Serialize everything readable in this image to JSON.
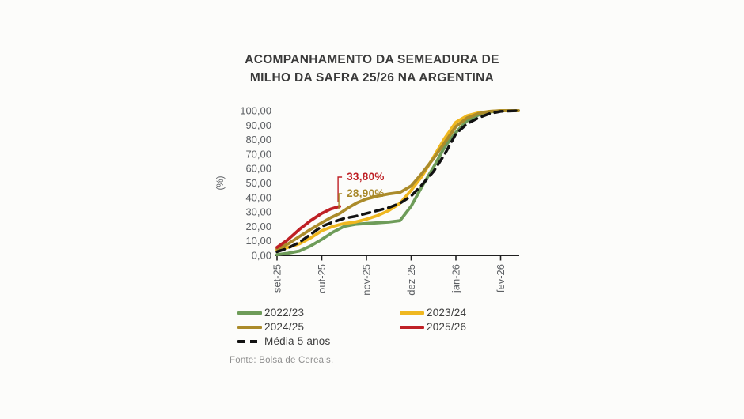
{
  "title": {
    "line1": "ACOMPANHAMENTO DA SEMEADURA DE",
    "line2": "MILHO DA SAFRA 25/26 NA ARGENTINA"
  },
  "source": "Fonte: Bolsa de Cereais.",
  "colors": {
    "season_2022_23": "#6e9c59",
    "season_2023_24": "#efb71f",
    "season_2024_25": "#ab8b2a",
    "season_2025_26": "#bf2025",
    "media_5_anos": "#121212",
    "axis": "#1f1f1f",
    "tick_text": "#5c5f63"
  },
  "chart_data": {
    "type": "line",
    "title": "ACOMPANHAMENTO DA SEMEADURA DE MILHO DA SAFRA 25/26 NA ARGENTINA",
    "xlabel": "",
    "ylabel": "(%)",
    "ylim": [
      0,
      100
    ],
    "y_tick_step": 10,
    "y_tick_labels": [
      "0,00",
      "10,00",
      "20,00",
      "30,00",
      "40,00",
      "50,00",
      "60,00",
      "70,00",
      "80,00",
      "90,00",
      "100,00"
    ],
    "x_tick_labels": [
      "set-25",
      "out-25",
      "nov-25",
      "dez-25",
      "jan-26",
      "fev-26"
    ],
    "x_unit": "months since set-25",
    "grid": false,
    "legend_position": "bottom",
    "legend_order": [
      "2022/23",
      "2023/24",
      "2024/25",
      "2025/26",
      "Média 5 anos"
    ],
    "series": [
      {
        "name": "2022/23",
        "color": "#6e9c59",
        "style": "solid",
        "points": [
          [
            0,
            0.5
          ],
          [
            0.25,
            1.5
          ],
          [
            0.5,
            3
          ],
          [
            0.75,
            6.5
          ],
          [
            1,
            11
          ],
          [
            1.25,
            16
          ],
          [
            1.5,
            20
          ],
          [
            1.75,
            21.5
          ],
          [
            2,
            22
          ],
          [
            2.25,
            22.5
          ],
          [
            2.5,
            23
          ],
          [
            2.75,
            24
          ],
          [
            3,
            34
          ],
          [
            3.25,
            48
          ],
          [
            3.5,
            61
          ],
          [
            3.75,
            75
          ],
          [
            4,
            85
          ],
          [
            4.25,
            93
          ],
          [
            4.5,
            97
          ],
          [
            4.75,
            99
          ],
          [
            5,
            100
          ],
          [
            5.4,
            100
          ]
        ]
      },
      {
        "name": "2023/24",
        "color": "#efb71f",
        "style": "solid",
        "points": [
          [
            0,
            3.5
          ],
          [
            0.25,
            5.5
          ],
          [
            0.5,
            8
          ],
          [
            0.75,
            12
          ],
          [
            1,
            17
          ],
          [
            1.25,
            20
          ],
          [
            1.5,
            22
          ],
          [
            1.75,
            23
          ],
          [
            2,
            25
          ],
          [
            2.25,
            27.5
          ],
          [
            2.5,
            31
          ],
          [
            2.75,
            36
          ],
          [
            3,
            45
          ],
          [
            3.25,
            55
          ],
          [
            3.5,
            68
          ],
          [
            3.75,
            81
          ],
          [
            4,
            92
          ],
          [
            4.25,
            96.5
          ],
          [
            4.5,
            98.5
          ],
          [
            4.75,
            99.5
          ],
          [
            5,
            100
          ],
          [
            5.4,
            100
          ]
        ]
      },
      {
        "name": "2024/25",
        "color": "#ab8b2a",
        "style": "solid",
        "points": [
          [
            0,
            4.5
          ],
          [
            0.25,
            8
          ],
          [
            0.5,
            13
          ],
          [
            0.75,
            18
          ],
          [
            1,
            22.5
          ],
          [
            1.2,
            26
          ],
          [
            1.4,
            28.9
          ],
          [
            1.6,
            33
          ],
          [
            1.8,
            36.5
          ],
          [
            2,
            39
          ],
          [
            2.25,
            41
          ],
          [
            2.5,
            42.5
          ],
          [
            2.75,
            43.5
          ],
          [
            3,
            48
          ],
          [
            3.25,
            57
          ],
          [
            3.5,
            67
          ],
          [
            3.75,
            78
          ],
          [
            4,
            89
          ],
          [
            4.25,
            95
          ],
          [
            4.5,
            98
          ],
          [
            4.75,
            99.5
          ],
          [
            5,
            100
          ],
          [
            5.4,
            100
          ]
        ]
      },
      {
        "name": "Média 5 anos",
        "color": "#121212",
        "style": "dashed",
        "points": [
          [
            0,
            2.5
          ],
          [
            0.25,
            5
          ],
          [
            0.5,
            9
          ],
          [
            0.75,
            14.5
          ],
          [
            1,
            20
          ],
          [
            1.25,
            23
          ],
          [
            1.5,
            25.5
          ],
          [
            1.75,
            27
          ],
          [
            2,
            29
          ],
          [
            2.25,
            31
          ],
          [
            2.5,
            33
          ],
          [
            2.75,
            36
          ],
          [
            3,
            41
          ],
          [
            3.25,
            49
          ],
          [
            3.5,
            58
          ],
          [
            3.75,
            70
          ],
          [
            4,
            84
          ],
          [
            4.25,
            91
          ],
          [
            4.5,
            95
          ],
          [
            4.75,
            98
          ],
          [
            5,
            99.5
          ],
          [
            5.4,
            100
          ]
        ]
      },
      {
        "name": "2025/26",
        "color": "#bf2025",
        "style": "solid",
        "points": [
          [
            0,
            5.5
          ],
          [
            0.25,
            11
          ],
          [
            0.5,
            18
          ],
          [
            0.75,
            24
          ],
          [
            1,
            29
          ],
          [
            1.2,
            32
          ],
          [
            1.4,
            33.8
          ]
        ]
      }
    ],
    "annotations": [
      {
        "text": "33,80%",
        "series": "2025/26",
        "x": 1.4,
        "y": 33.8,
        "color": "#bf2025"
      },
      {
        "text": "28,90%",
        "series": "2024/25",
        "x": 1.4,
        "y": 28.9,
        "color": "#a8882b"
      }
    ]
  }
}
